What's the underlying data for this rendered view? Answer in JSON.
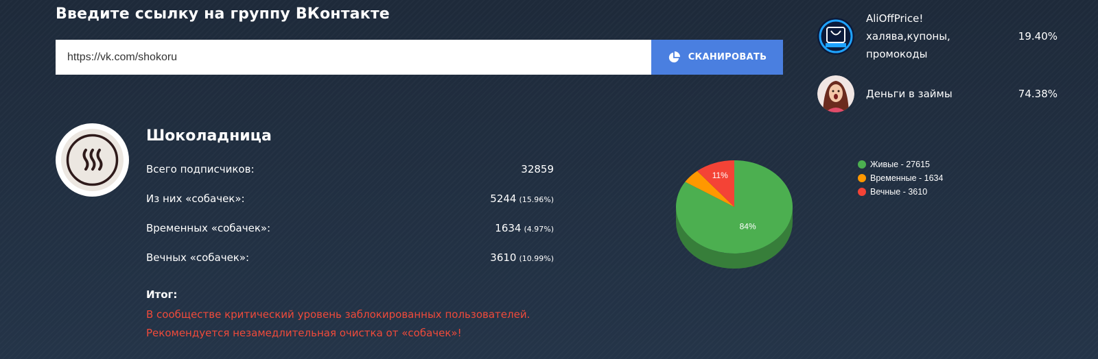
{
  "header": {
    "title": "Введите ссылку на группу ВКонтакте"
  },
  "search": {
    "value": "https://vk.com/shokoru",
    "button_label": "СКАНИРОВАТЬ"
  },
  "ads": [
    {
      "title": "AliOffPrice! халява,купоны, промокоды",
      "percent": "19.40%",
      "icon": "aliexpress-logo"
    },
    {
      "title": "Деньги в займы",
      "percent": "74.38%",
      "icon": "woman-photo"
    }
  ],
  "group": {
    "name": "Шоколадница",
    "avatar_icon": "steam-waves-logo",
    "stats": [
      {
        "label": "Всего подписчиков:",
        "value": "32859",
        "percent": ""
      },
      {
        "label": "Из них «собачек»:",
        "value": "5244",
        "percent": "(15.96%)"
      },
      {
        "label": "Временных «собачек»:",
        "value": "1634",
        "percent": "(4.97%)"
      },
      {
        "label": "Вечных «собачек»:",
        "value": "3610",
        "percent": "(10.99%)"
      }
    ],
    "result_label": "Итог:",
    "result_lines": [
      "В сообществе критический уровень заблокированных пользователей.",
      "Рекомендуется незамедлительная очистка от «собачек»!"
    ]
  },
  "colors": {
    "alive": "#4caf50",
    "temporary": "#ff9800",
    "eternal": "#f44336",
    "accent": "#4a7fe0"
  },
  "chart_data": {
    "type": "pie",
    "slices": [
      {
        "name": "Живые",
        "value": 27615,
        "color": "#4caf50",
        "label": "84%"
      },
      {
        "name": "Временные",
        "value": 1634,
        "color": "#ff9800",
        "label": ""
      },
      {
        "name": "Вечные",
        "value": 3610,
        "color": "#f44336",
        "label": "11%"
      }
    ],
    "legend": [
      "Живые - 27615",
      "Временные - 1634",
      "Вечные - 3610"
    ],
    "legend_position": "right"
  }
}
